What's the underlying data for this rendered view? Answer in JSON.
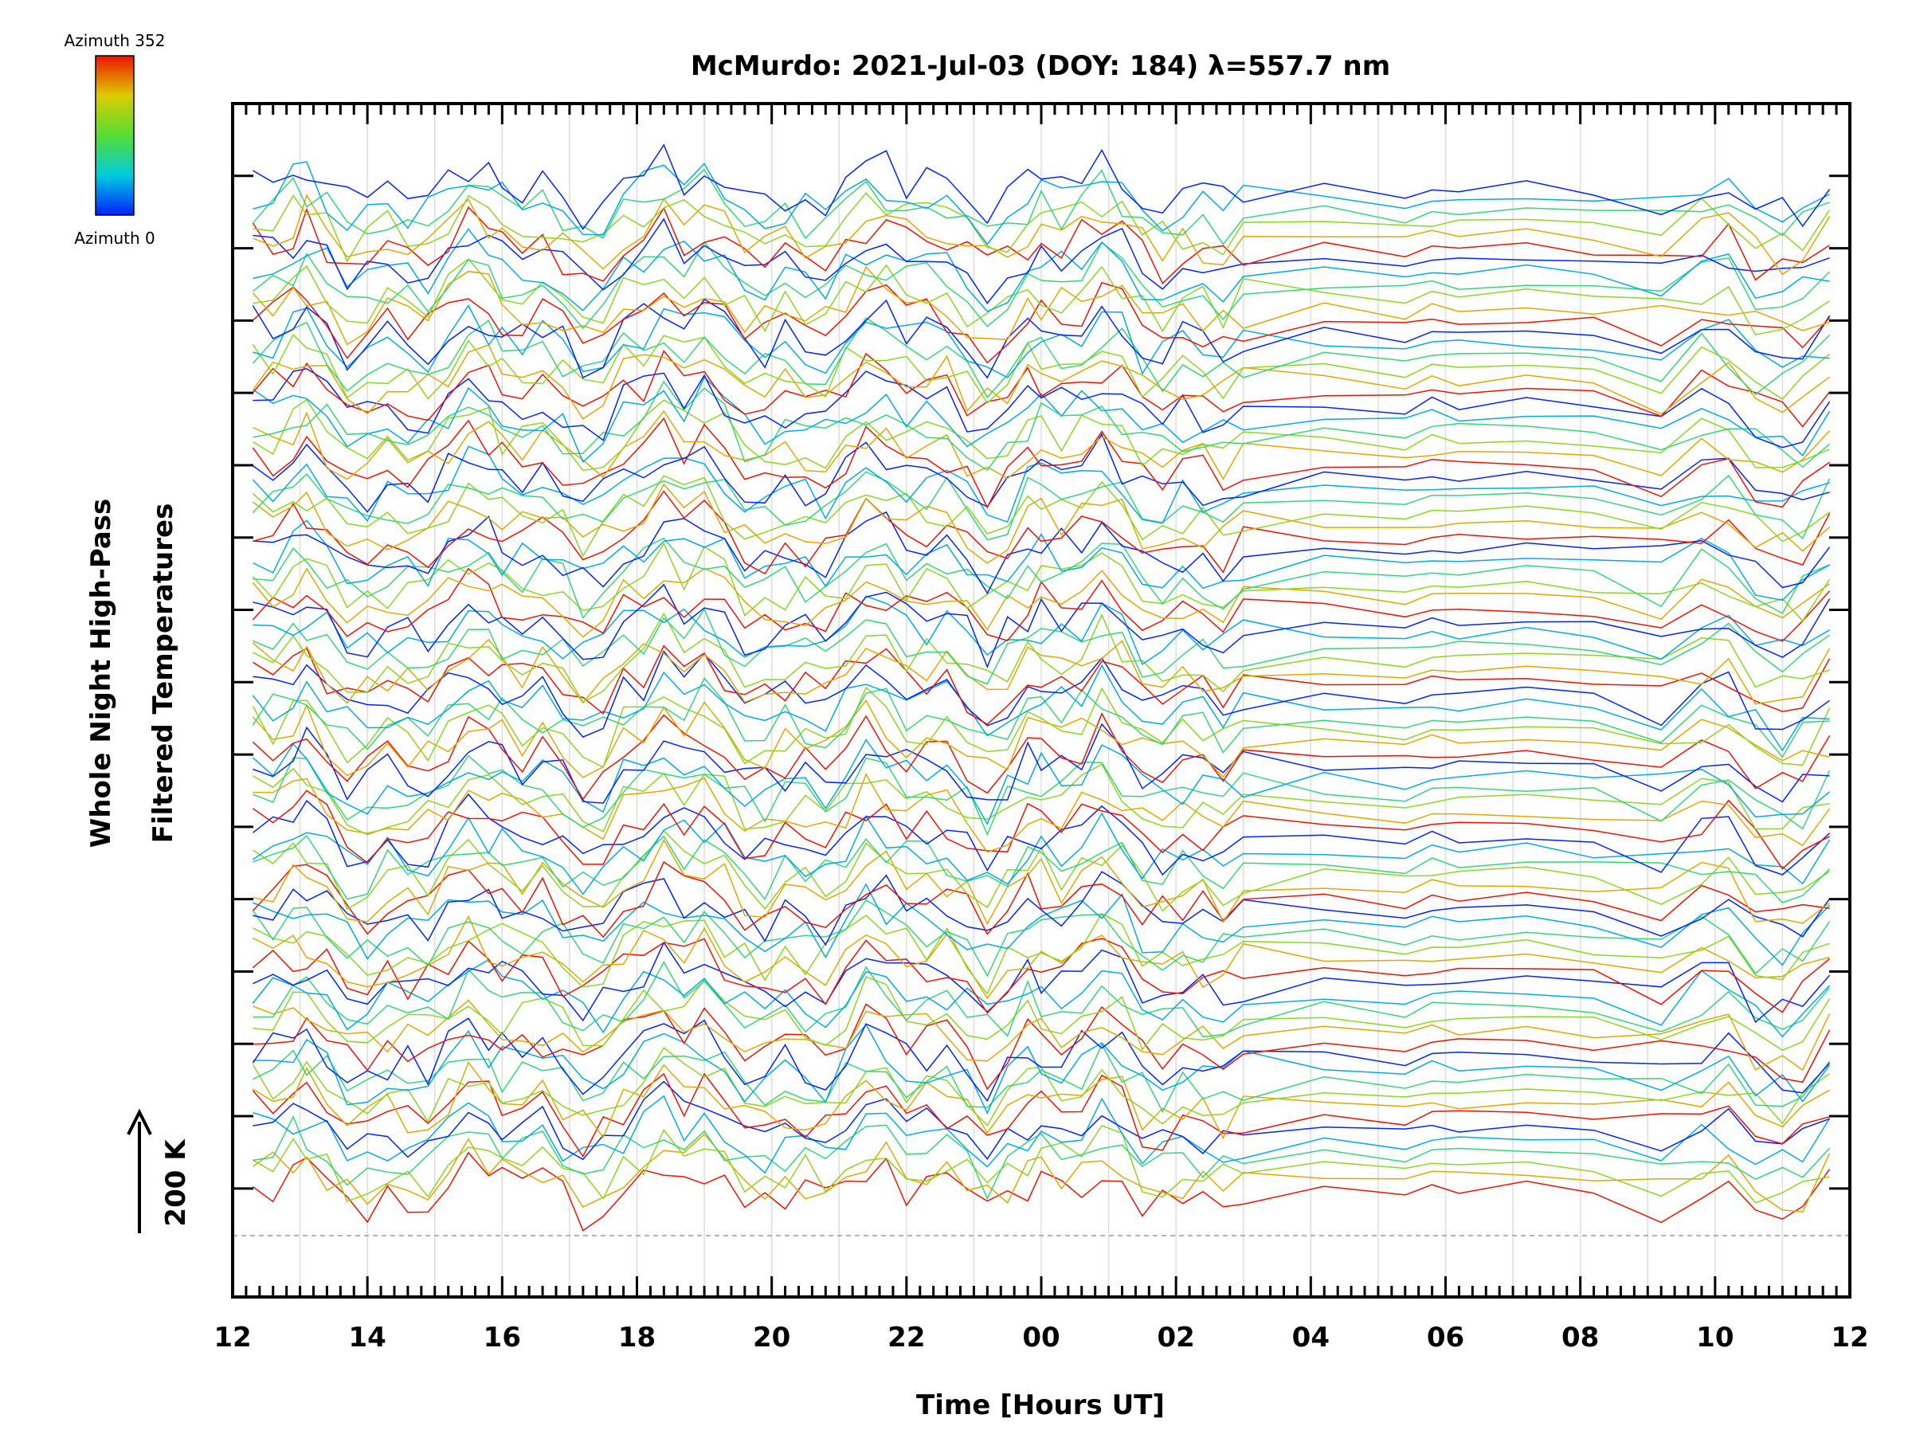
{
  "chart_data": {
    "type": "line",
    "title": "McMurdo: 2021-Jul-03 (DOY: 184) λ=557.7 nm",
    "xlabel": "Time [Hours UT]",
    "ylabel_line1": "Whole Night High-Pass",
    "ylabel_line2": "Filtered Temperatures",
    "scale_label": "200 K",
    "colorbar": {
      "top_label": "Azimuth 352",
      "bottom_label": "Azimuth 0",
      "min_azimuth": 0,
      "max_azimuth": 352
    },
    "x_range_hours": [
      12,
      36
    ],
    "x_ticks": [
      "12",
      "14",
      "16",
      "18",
      "20",
      "22",
      "00",
      "02",
      "04",
      "06",
      "08",
      "10",
      "12"
    ],
    "x_tick_hours": [
      12,
      14,
      16,
      18,
      20,
      22,
      24,
      26,
      28,
      30,
      32,
      34,
      36
    ],
    "y_range_traces": [
      -1.5,
      15.0
    ],
    "traces_per_group": 6,
    "trace_offset_step": 0.1667,
    "n_traces": 84,
    "sample_times": [
      12.3,
      12.6,
      12.9,
      13.1,
      13.4,
      13.7,
      14.0,
      14.3,
      14.6,
      14.9,
      15.2,
      15.5,
      15.8,
      16.0,
      16.3,
      16.6,
      16.9,
      17.2,
      17.5,
      17.8,
      18.1,
      18.4,
      18.7,
      19.0,
      19.3,
      19.6,
      19.9,
      20.2,
      20.5,
      20.8,
      21.1,
      21.4,
      21.7,
      22.0,
      22.3,
      22.6,
      22.9,
      23.2,
      23.5,
      23.8,
      24.0,
      24.3,
      24.6,
      24.9,
      25.2,
      25.5,
      25.8,
      26.1,
      26.4,
      26.7,
      27.0,
      28.2,
      29.4,
      29.8,
      30.2,
      31.2,
      32.2,
      33.2,
      33.8,
      34.2,
      34.6,
      35.0,
      35.3,
      35.7
    ]
  }
}
